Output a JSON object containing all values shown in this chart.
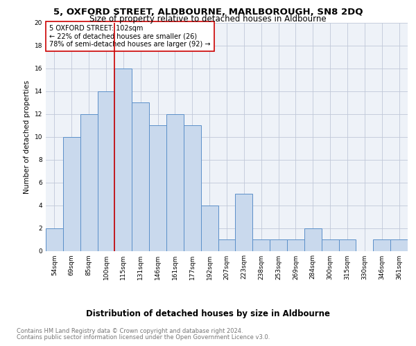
{
  "title": "5, OXFORD STREET, ALDBOURNE, MARLBOROUGH, SN8 2DQ",
  "subtitle": "Size of property relative to detached houses in Aldbourne",
  "xlabel": "Distribution of detached houses by size in Aldbourne",
  "ylabel": "Number of detached properties",
  "categories": [
    "54sqm",
    "69sqm",
    "85sqm",
    "100sqm",
    "115sqm",
    "131sqm",
    "146sqm",
    "161sqm",
    "177sqm",
    "192sqm",
    "207sqm",
    "223sqm",
    "238sqm",
    "253sqm",
    "269sqm",
    "284sqm",
    "300sqm",
    "315sqm",
    "330sqm",
    "346sqm",
    "361sqm"
  ],
  "values": [
    2,
    10,
    12,
    14,
    16,
    13,
    11,
    12,
    11,
    4,
    1,
    5,
    1,
    1,
    1,
    2,
    1,
    1,
    0,
    1,
    1
  ],
  "bar_color": "#c9d9ed",
  "bar_edge_color": "#5b8fc9",
  "grid_color": "#c0c8d8",
  "bg_color": "#eef2f8",
  "vline_color": "#cc0000",
  "vline_x_index": 3,
  "annotation_text": "5 OXFORD STREET: 102sqm\n← 22% of detached houses are smaller (26)\n78% of semi-detached houses are larger (92) →",
  "annotation_box_edge_color": "#cc0000",
  "ylim": [
    0,
    20
  ],
  "yticks": [
    0,
    2,
    4,
    6,
    8,
    10,
    12,
    14,
    16,
    18,
    20
  ],
  "footer_line1": "Contains HM Land Registry data © Crown copyright and database right 2024.",
  "footer_line2": "Contains public sector information licensed under the Open Government Licence v3.0.",
  "title_fontsize": 9.5,
  "subtitle_fontsize": 8.5,
  "xlabel_fontsize": 8.5,
  "ylabel_fontsize": 7.5,
  "tick_fontsize": 6.5,
  "annotation_fontsize": 7.0,
  "footer_fontsize": 6.0
}
